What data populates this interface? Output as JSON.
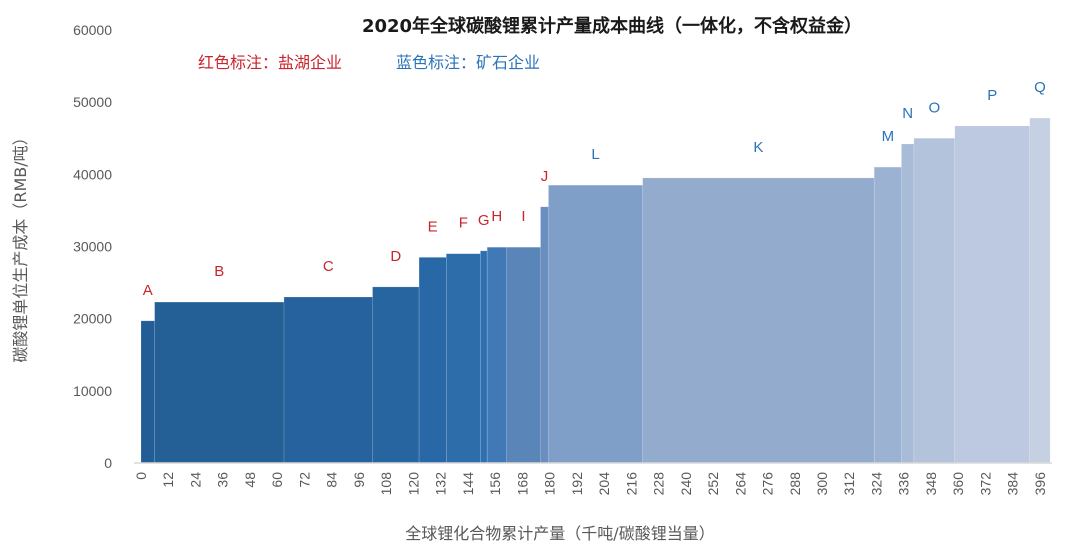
{
  "chart_data": {
    "type": "bar",
    "subtype": "variable-width cost curve",
    "title": "2020年全球碳酸锂累计产量成本曲线（一体化，不含权益金）",
    "xlabel": "全球锂化合物累计产量（千吨/碳酸锂当量）",
    "ylabel": "碳酸锂单位生产成本（RMB/吨）",
    "legend": [
      {
        "text": "红色标注：盐湖企业",
        "color": "#c9252c",
        "group": "brine"
      },
      {
        "text": "蓝色标注：矿石企业",
        "color": "#2a73b8",
        "group": "ore"
      }
    ],
    "xlim": [
      0,
      400
    ],
    "ylim": [
      0,
      60000
    ],
    "xticks": [
      0,
      12,
      24,
      36,
      48,
      60,
      72,
      84,
      96,
      108,
      120,
      132,
      144,
      156,
      168,
      180,
      192,
      204,
      216,
      228,
      240,
      252,
      264,
      276,
      288,
      300,
      312,
      324,
      336,
      348,
      360,
      372,
      384,
      396
    ],
    "yticks": [
      0,
      10000,
      20000,
      30000,
      40000,
      50000,
      60000
    ],
    "grid": false,
    "segments": [
      {
        "label": "A",
        "x0": 0,
        "x1": 6,
        "cost": 19700,
        "group": "brine",
        "color": "#235d95"
      },
      {
        "label": "B",
        "x0": 6,
        "x1": 63,
        "cost": 22300,
        "group": "brine",
        "color": "#245f96"
      },
      {
        "label": "C",
        "x0": 63,
        "x1": 102,
        "cost": 23000,
        "group": "brine",
        "color": "#26629d"
      },
      {
        "label": "D",
        "x0": 102,
        "x1": 122.5,
        "cost": 24400,
        "group": "brine",
        "color": "#2765a0"
      },
      {
        "label": "E",
        "x0": 122.5,
        "x1": 134.5,
        "cost": 28500,
        "group": "brine",
        "color": "#2968a6"
      },
      {
        "label": "F",
        "x0": 134.5,
        "x1": 149.5,
        "cost": 29000,
        "group": "brine",
        "color": "#2c6daa"
      },
      {
        "label": "G",
        "x0": 149.5,
        "x1": 152.5,
        "cost": 29400,
        "group": "brine",
        "color": "#2f71b0"
      },
      {
        "label": "H",
        "x0": 152.5,
        "x1": 161,
        "cost": 29900,
        "group": "brine",
        "color": "#4079b6"
      },
      {
        "label": "I",
        "x0": 161,
        "x1": 176,
        "cost": 29900,
        "group": "brine",
        "color": "#5a85b9"
      },
      {
        "label": "J",
        "x0": 176,
        "x1": 179.5,
        "cost": 35500,
        "group": "brine",
        "color": "#6a8ebf"
      },
      {
        "label": "L",
        "x0": 179.5,
        "x1": 221,
        "cost": 38500,
        "group": "ore",
        "color": "#809fc8"
      },
      {
        "label": "K",
        "x0": 221,
        "x1": 323,
        "cost": 39500,
        "group": "ore",
        "color": "#93abcd"
      },
      {
        "label": "M",
        "x0": 323,
        "x1": 335,
        "cost": 41000,
        "group": "ore",
        "color": "#9cb2d2"
      },
      {
        "label": "N",
        "x0": 335,
        "x1": 340.5,
        "cost": 44200,
        "group": "ore",
        "color": "#a8bbd7"
      },
      {
        "label": "O",
        "x0": 340.5,
        "x1": 358.5,
        "cost": 45000,
        "group": "ore",
        "color": "#b3c3dc"
      },
      {
        "label": "P",
        "x0": 358.5,
        "x1": 391.5,
        "cost": 46700,
        "group": "ore",
        "color": "#bcc9e0"
      },
      {
        "label": "Q",
        "x0": 391.5,
        "x1": 400.5,
        "cost": 47800,
        "group": "ore",
        "color": "#c6d0e3"
      }
    ]
  }
}
